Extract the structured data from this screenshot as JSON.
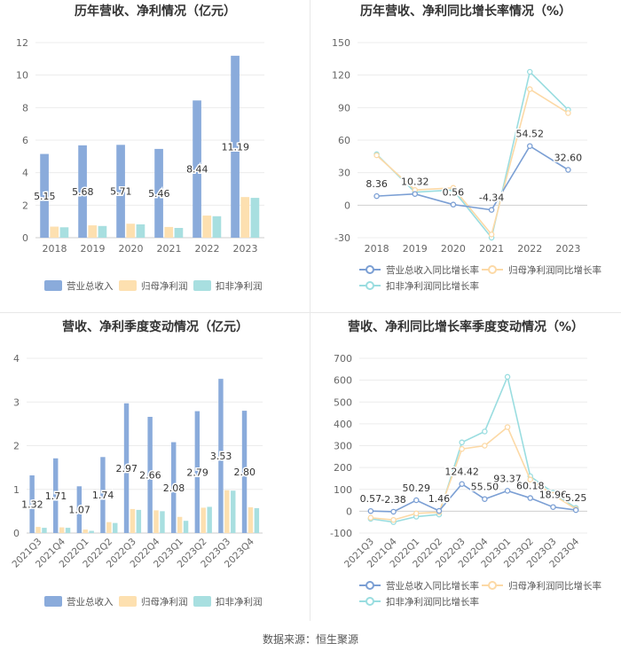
{
  "footer": "数据来源：恒生聚源",
  "chart_data": [
    {
      "type": "bar",
      "title": "历年营收、净利情况（亿元）",
      "categories": [
        "2018",
        "2019",
        "2020",
        "2021",
        "2022",
        "2023"
      ],
      "ylim": [
        0,
        12
      ],
      "yticks": [
        0,
        2,
        4,
        6,
        8,
        10,
        12
      ],
      "series": [
        {
          "name": "营业总收入",
          "color": "#8aabdb",
          "values": [
            5.15,
            5.68,
            5.71,
            5.46,
            8.44,
            11.19
          ],
          "labels": [
            "5.15",
            "5.68",
            "5.71",
            "5.46",
            "8.44",
            "11.19"
          ]
        },
        {
          "name": "归母净利润",
          "color": "#fde0b0",
          "values": [
            0.68,
            0.76,
            0.86,
            0.66,
            1.36,
            2.5
          ]
        },
        {
          "name": "扣非净利润",
          "color": "#a8dfe0",
          "values": [
            0.64,
            0.72,
            0.82,
            0.6,
            1.32,
            2.45
          ]
        }
      ],
      "legend": "bottom"
    },
    {
      "type": "line",
      "title": "历年营收、净利同比增长率情况（%）",
      "categories": [
        "2018",
        "2019",
        "2020",
        "2021",
        "2022",
        "2023"
      ],
      "ylim": [
        -30,
        150
      ],
      "yticks": [
        -30,
        0,
        30,
        60,
        90,
        120,
        150
      ],
      "series": [
        {
          "name": "营业总收入同比增长率",
          "color": "#7b9fd4",
          "values": [
            8.36,
            10.32,
            0.56,
            -4.34,
            54.52,
            32.6
          ],
          "labels": [
            "8.36",
            "10.32",
            "0.56",
            "-4.34",
            "54.52",
            "32.60"
          ]
        },
        {
          "name": "归母净利润同比增长率",
          "color": "#fcd9a6",
          "values": [
            46,
            14,
            16,
            -27,
            107,
            85
          ]
        },
        {
          "name": "扣非净利润同比增长率",
          "color": "#9adde0",
          "values": [
            47,
            12,
            14,
            -30,
            123,
            88
          ]
        }
      ],
      "legend": "bottom"
    },
    {
      "type": "bar",
      "title": "营收、净利季度变动情况（亿元）",
      "categories": [
        "2021Q3",
        "2021Q4",
        "2022Q1",
        "2022Q2",
        "2022Q3",
        "2022Q4",
        "2023Q1",
        "2023Q2",
        "2023Q3",
        "2023Q4"
      ],
      "ylim": [
        0,
        4
      ],
      "yticks": [
        0,
        1,
        2,
        3,
        4
      ],
      "series": [
        {
          "name": "营业总收入",
          "color": "#8aabdb",
          "values": [
            1.32,
            1.71,
            1.07,
            1.74,
            2.97,
            2.66,
            2.08,
            2.79,
            3.53,
            2.8
          ],
          "labels": [
            "1.32",
            "1.71",
            "1.07",
            "1.74",
            "2.97",
            "2.66",
            "2.08",
            "2.79",
            "3.53",
            "2.80"
          ]
        },
        {
          "name": "归母净利润",
          "color": "#fde0b0",
          "values": [
            0.14,
            0.13,
            0.08,
            0.25,
            0.55,
            0.52,
            0.37,
            0.58,
            0.98,
            0.59
          ]
        },
        {
          "name": "扣非净利润",
          "color": "#a8dfe0",
          "values": [
            0.12,
            0.12,
            0.05,
            0.23,
            0.53,
            0.5,
            0.28,
            0.6,
            0.97,
            0.57
          ]
        }
      ],
      "legend": "bottom"
    },
    {
      "type": "line",
      "title": "营收、净利同比增长率季度变动情况（%）",
      "categories": [
        "2021Q3",
        "2021Q4",
        "2022Q1",
        "2022Q2",
        "2022Q3",
        "2022Q4",
        "2023Q1",
        "2023Q2",
        "2023Q3",
        "2023Q4"
      ],
      "ylim": [
        -100,
        700
      ],
      "yticks": [
        -100,
        0,
        100,
        200,
        300,
        400,
        500,
        600,
        700
      ],
      "series": [
        {
          "name": "营业总收入同比增长率",
          "color": "#7b9fd4",
          "values": [
            0.57,
            -2.38,
            50.29,
            1.46,
            124.42,
            55.5,
            93.37,
            60.18,
            18.96,
            5.25
          ],
          "labels": [
            "0.57",
            "-2.38",
            "50.29",
            "1.46",
            "124.42",
            "55.50",
            "93.37",
            "60.18",
            "18.96",
            "5.25"
          ]
        },
        {
          "name": "归母净利润同比增长率",
          "color": "#fcd9a6",
          "values": [
            -30,
            -40,
            -10,
            -5,
            285,
            300,
            385,
            145,
            75,
            10
          ]
        },
        {
          "name": "扣非净利润同比增长率",
          "color": "#9adde0",
          "values": [
            -35,
            -50,
            -25,
            -15,
            315,
            365,
            615,
            160,
            85,
            15
          ]
        }
      ],
      "legend": "bottom"
    }
  ]
}
